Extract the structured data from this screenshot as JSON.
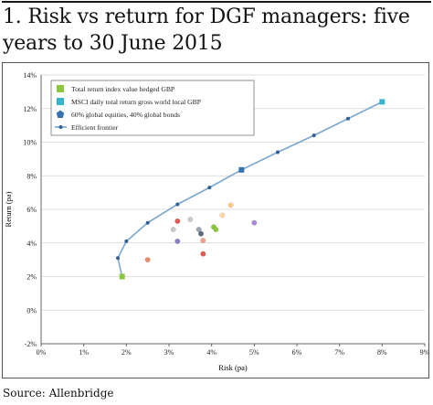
{
  "title": "1. Risk vs return for DGF managers: five years to 30 June 2015",
  "source": "Source: Allenbridge",
  "chart_data": {
    "type": "scatter",
    "xlabel": "Risk (pa)",
    "ylabel": "Return (pa)",
    "xlim": [
      0,
      9
    ],
    "ylim": [
      -2,
      14
    ],
    "x_ticks": [
      "0%",
      "1%",
      "2%",
      "3%",
      "4%",
      "5%",
      "6%",
      "7%",
      "8%",
      "9%"
    ],
    "y_ticks": [
      "-2%",
      "0%",
      "2%",
      "4%",
      "6%",
      "8%",
      "10%",
      "12%",
      "14%"
    ],
    "grid": "horizontal",
    "legend_position": "top-left",
    "legend": [
      {
        "label": "Total return index value hedged GBP",
        "color": "#8dc63f",
        "marker": "square"
      },
      {
        "label": "MSCI daily total return gross world local GBP",
        "color": "#35b6cc",
        "marker": "square"
      },
      {
        "label": "60% global equities, 40% global bonds",
        "color": "#3a72b0",
        "marker": "pentagon"
      },
      {
        "label": "Efficient frontier",
        "color": "#7aa7d0",
        "marker": "line-dot"
      }
    ],
    "series": [
      {
        "name": "Efficient frontier",
        "points": [
          [
            1.9,
            2.0
          ],
          [
            1.8,
            3.1
          ],
          [
            2.0,
            4.1
          ],
          [
            2.5,
            5.2
          ],
          [
            3.2,
            6.3
          ],
          [
            3.95,
            7.3
          ],
          [
            4.7,
            8.35
          ],
          [
            5.55,
            9.4
          ],
          [
            6.4,
            10.4
          ],
          [
            7.2,
            11.4
          ],
          [
            8.0,
            12.4
          ]
        ],
        "color": "#7aa7d0"
      }
    ],
    "markers": [
      {
        "x": 1.9,
        "y": 2.0,
        "color": "#8dc63f",
        "shape": "square"
      },
      {
        "x": 8.0,
        "y": 12.4,
        "color": "#35b6cc",
        "shape": "square"
      },
      {
        "x": 4.7,
        "y": 8.35,
        "color": "#3a72b0",
        "shape": "square"
      }
    ],
    "managers": [
      {
        "x": 3.2,
        "y": 5.3,
        "color": "#e05a4f"
      },
      {
        "x": 3.5,
        "y": 5.4,
        "color": "#c9c9c9"
      },
      {
        "x": 3.1,
        "y": 4.8,
        "color": "#c9c9c9"
      },
      {
        "x": 3.2,
        "y": 4.1,
        "color": "#8e7cc3"
      },
      {
        "x": 2.5,
        "y": 3.0,
        "color": "#e98a6b"
      },
      {
        "x": 3.7,
        "y": 4.8,
        "color": "#9aa3ad"
      },
      {
        "x": 3.75,
        "y": 4.55,
        "color": "#5a6a7a"
      },
      {
        "x": 3.8,
        "y": 4.15,
        "color": "#f0a08a"
      },
      {
        "x": 3.8,
        "y": 3.35,
        "color": "#e05a4f"
      },
      {
        "x": 4.05,
        "y": 4.95,
        "color": "#8dc63f"
      },
      {
        "x": 4.1,
        "y": 4.8,
        "color": "#8dc63f"
      },
      {
        "x": 4.25,
        "y": 5.65,
        "color": "#fbd5a8"
      },
      {
        "x": 4.45,
        "y": 6.25,
        "color": "#fbc98a"
      },
      {
        "x": 5.0,
        "y": 5.2,
        "color": "#a78bd0"
      }
    ]
  }
}
